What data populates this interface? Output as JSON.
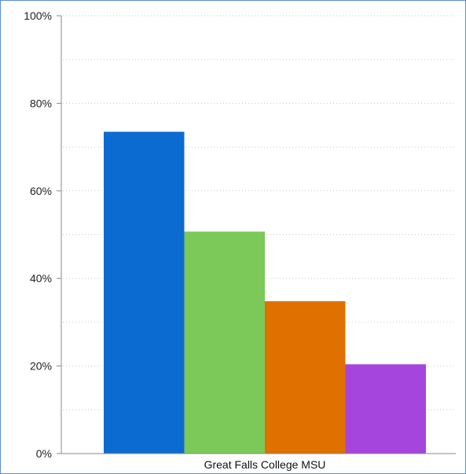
{
  "chart_data": {
    "type": "bar",
    "title": "",
    "xlabel": "",
    "ylabel": "",
    "categories": [
      "Great Falls College MSU"
    ],
    "series": [
      {
        "values": [
          73.5
        ],
        "color": "#0c6bd0"
      },
      {
        "values": [
          50.7
        ],
        "color": "#7cc95a"
      },
      {
        "values": [
          34.8
        ],
        "color": "#e07000"
      },
      {
        "values": [
          20.4
        ],
        "color": "#a545de"
      }
    ],
    "ylim": [
      0,
      100
    ],
    "yticks": [
      {
        "value": 0,
        "label": "0%"
      },
      {
        "value": 20,
        "label": "20%"
      },
      {
        "value": 40,
        "label": "40%"
      },
      {
        "value": 60,
        "label": "60%"
      },
      {
        "value": 80,
        "label": "80%"
      },
      {
        "value": 100,
        "label": "100%"
      }
    ],
    "grid": "horizontal dotted",
    "legend": "none"
  }
}
